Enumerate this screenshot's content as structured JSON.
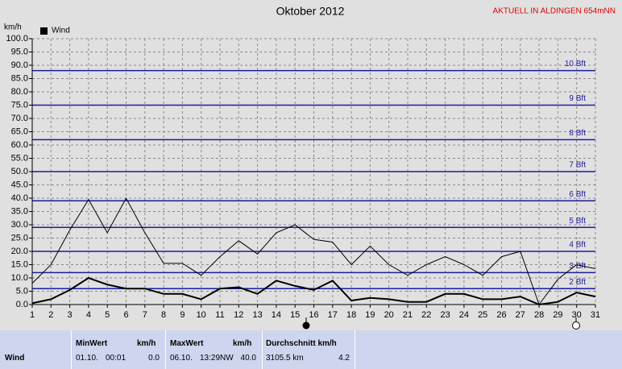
{
  "chart_data": {
    "type": "line",
    "title": "Oktober 2012",
    "annotation": "AKTUELL IN ALDINGEN 654mNN",
    "ylabel": "km/h",
    "x": [
      1,
      2,
      3,
      4,
      5,
      6,
      7,
      8,
      9,
      10,
      11,
      12,
      13,
      14,
      15,
      16,
      17,
      18,
      19,
      20,
      21,
      22,
      23,
      24,
      25,
      26,
      27,
      28,
      29,
      30,
      31
    ],
    "xlim": [
      1,
      31
    ],
    "xticks": [
      1,
      2,
      3,
      4,
      5,
      6,
      7,
      8,
      9,
      10,
      11,
      12,
      13,
      14,
      15,
      16,
      17,
      18,
      19,
      20,
      21,
      22,
      23,
      24,
      25,
      26,
      27,
      28,
      29,
      30,
      31
    ],
    "ylim": [
      0,
      100
    ],
    "yticks": [
      {
        "value": 0,
        "label": "0.0"
      },
      {
        "value": 5,
        "label": "5.0"
      },
      {
        "value": 10,
        "label": "10.0"
      },
      {
        "value": 15,
        "label": "15.0"
      },
      {
        "value": 20,
        "label": "20.0"
      },
      {
        "value": 25,
        "label": "25.0"
      },
      {
        "value": 30,
        "label": "30.0"
      },
      {
        "value": 35,
        "label": "35.0"
      },
      {
        "value": 40,
        "label": "40.0"
      },
      {
        "value": 45,
        "label": "45.0"
      },
      {
        "value": 50,
        "label": "50.0"
      },
      {
        "value": 55,
        "label": "55.0"
      },
      {
        "value": 60,
        "label": "60.0"
      },
      {
        "value": 65,
        "label": "65.0"
      },
      {
        "value": 70,
        "label": "70.0"
      },
      {
        "value": 75,
        "label": "75.0"
      },
      {
        "value": 80,
        "label": "80.0"
      },
      {
        "value": 85,
        "label": "85.0"
      },
      {
        "value": 90,
        "label": "90.0"
      },
      {
        "value": 95,
        "label": "95.0"
      },
      {
        "value": 100,
        "label": "100.0"
      }
    ],
    "grid": true,
    "legend": "top-left",
    "reference_lines": {
      "color": "#1c1c9c",
      "lines": [
        {
          "value": 6,
          "label": "2 Bft"
        },
        {
          "value": 12,
          "label": "3 Bft"
        },
        {
          "value": 20,
          "label": "4 Bft"
        },
        {
          "value": 29,
          "label": "5 Bft"
        },
        {
          "value": 39,
          "label": "6 Bft"
        },
        {
          "value": 50,
          "label": "7 Bft"
        },
        {
          "value": 62,
          "label": "8 Bft"
        },
        {
          "value": 75,
          "label": "9 Bft"
        },
        {
          "value": 88,
          "label": "10 Bft"
        }
      ]
    },
    "series": [
      {
        "name": "Wind",
        "color": "#000000",
        "width": 2,
        "values": [
          0.5,
          2,
          5.5,
          10,
          7.5,
          6,
          6,
          4,
          4,
          2,
          6,
          6.5,
          4,
          9,
          7,
          5.5,
          9,
          1.5,
          2.5,
          2,
          1,
          1,
          4,
          4,
          2,
          2,
          3,
          0,
          1,
          4.5,
          3
        ]
      },
      {
        "color": "#000000",
        "width": 1,
        "values": [
          8,
          15,
          28,
          39.5,
          27,
          40,
          27,
          15.5,
          15.5,
          11,
          18,
          24,
          19,
          27,
          30,
          24.5,
          23.5,
          15,
          22,
          15,
          11,
          15,
          18,
          15,
          11,
          18,
          20,
          0,
          9.5,
          15,
          13.5
        ]
      }
    ]
  },
  "stats_table": {
    "header": [
      "MinWert",
      "km/h",
      "MaxWert",
      "km/h",
      "Durchschnitt km/h"
    ],
    "rows": [
      [
        "Wind",
        "01.10.",
        "00:01",
        "0.0",
        "06.10.",
        "13:29NW",
        "40.0",
        "3105.5 km",
        "4.2"
      ]
    ]
  }
}
